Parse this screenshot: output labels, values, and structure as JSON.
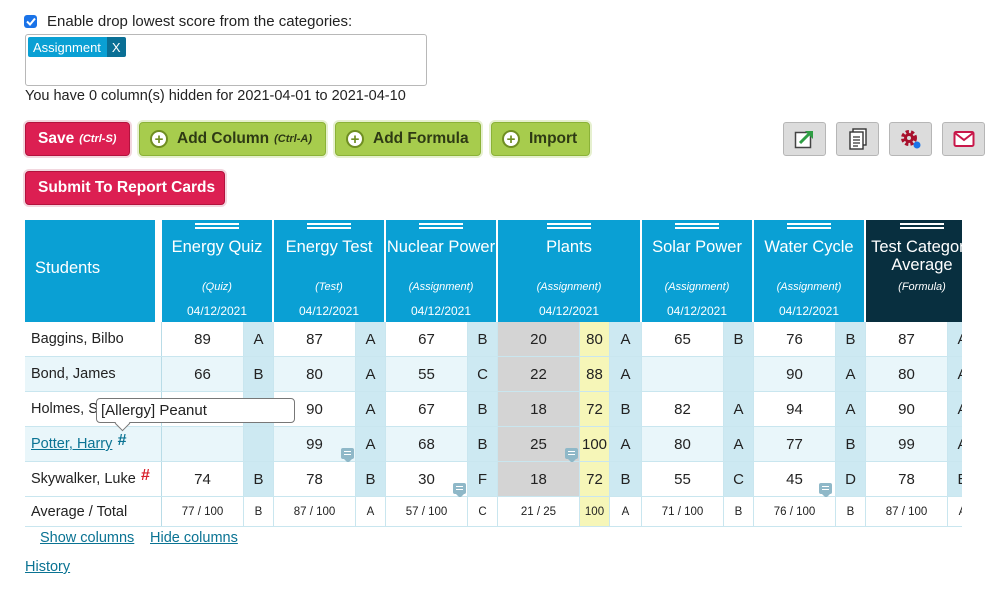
{
  "drop_lowest": {
    "label": "Enable drop lowest score from the categories:",
    "checked": true,
    "tags": [
      {
        "label": "Assignment",
        "remove": "X"
      }
    ]
  },
  "hidden_message": "You have 0 column(s) hidden for 2021-04-01 to 2021-04-10",
  "toolbar": {
    "save_label": "Save",
    "save_shortcut": "(Ctrl-S)",
    "add_column_label": "Add Column",
    "add_column_shortcut": "(Ctrl-A)",
    "add_formula_label": "Add Formula",
    "import_label": "Import",
    "submit_label": "Submit To Report Cards",
    "icons": [
      "export-icon",
      "document-icon",
      "settings-icon",
      "email-icon"
    ]
  },
  "grid": {
    "students_header": "Students",
    "columns": [
      {
        "title": "Energy Quiz",
        "type": "(Quiz)",
        "date": "04/12/2021"
      },
      {
        "title": "Energy Test",
        "type": "(Test)",
        "date": "04/12/2021"
      },
      {
        "title": "Nuclear Power",
        "type": "(Assignment)",
        "date": "04/12/2021"
      },
      {
        "title": "Plants",
        "type": "(Assignment)",
        "date": "04/12/2021"
      },
      {
        "title": "Solar Power",
        "type": "(Assignment)",
        "date": "04/12/2021"
      },
      {
        "title": "Water Cycle",
        "type": "(Assignment)",
        "date": "04/12/2021"
      },
      {
        "title": "Test Category Average",
        "type": "(Formula)",
        "date": ""
      }
    ],
    "rows": [
      {
        "name": "Baggins, Bilbo",
        "c0": "89",
        "g0": "A",
        "c1": "87",
        "g1": "A",
        "c2": "67",
        "g2": "B",
        "c3": "20",
        "p3": "80",
        "g3": "A",
        "c4": "65",
        "g4": "B",
        "c5": "76",
        "g5": "B",
        "c6": "87",
        "g6": "A"
      },
      {
        "name": "Bond, James",
        "c0": "66",
        "g0": "B",
        "c1": "80",
        "g1": "A",
        "c2": "55",
        "g2": "C",
        "c3": "22",
        "p3": "88",
        "g3": "A",
        "c4": "",
        "g4": "",
        "c5": "90",
        "g5": "A",
        "c6": "80",
        "g6": "A"
      },
      {
        "name": "Holmes, Sherlock",
        "c0": "",
        "g0": "",
        "c1": "90",
        "g1": "A",
        "c2": "67",
        "g2": "B",
        "c3": "18",
        "p3": "72",
        "g3": "B",
        "c4": "82",
        "g4": "A",
        "c5": "94",
        "g5": "A",
        "c6": "90",
        "g6": "A"
      },
      {
        "name": "Potter, Harry",
        "c0": "",
        "g0": "",
        "c1": "99",
        "g1": "A",
        "c2": "68",
        "g2": "B",
        "c3": "25",
        "p3": "100",
        "g3": "A",
        "c4": "80",
        "g4": "A",
        "c5": "77",
        "g5": "B",
        "c6": "99",
        "g6": "A"
      },
      {
        "name": "Skywalker, Luke",
        "c0": "74",
        "g0": "B",
        "c1": "78",
        "g1": "B",
        "c2": "30",
        "g2": "F",
        "c3": "18",
        "p3": "72",
        "g3": "B",
        "c4": "55",
        "g4": "C",
        "c5": "45",
        "g5": "D",
        "c6": "78",
        "g6": "B"
      }
    ],
    "average": {
      "name": "Average / Total",
      "c0": "77 / 100",
      "g0": "B",
      "c1": "87 / 100",
      "g1": "A",
      "c2": "57 / 100",
      "g2": "C",
      "c3": "21 / 25",
      "p3": "100",
      "g3": "A",
      "c4": "71 / 100",
      "g4": "B",
      "c5": "76 / 100",
      "g5": "B",
      "c6": "87 / 100",
      "g6": "A"
    },
    "hash_symbol": "#",
    "tooltip": "[Allergy] Peanut"
  },
  "links": {
    "show_columns": "Show columns",
    "hide_columns": "Hide columns",
    "history": "History"
  }
}
